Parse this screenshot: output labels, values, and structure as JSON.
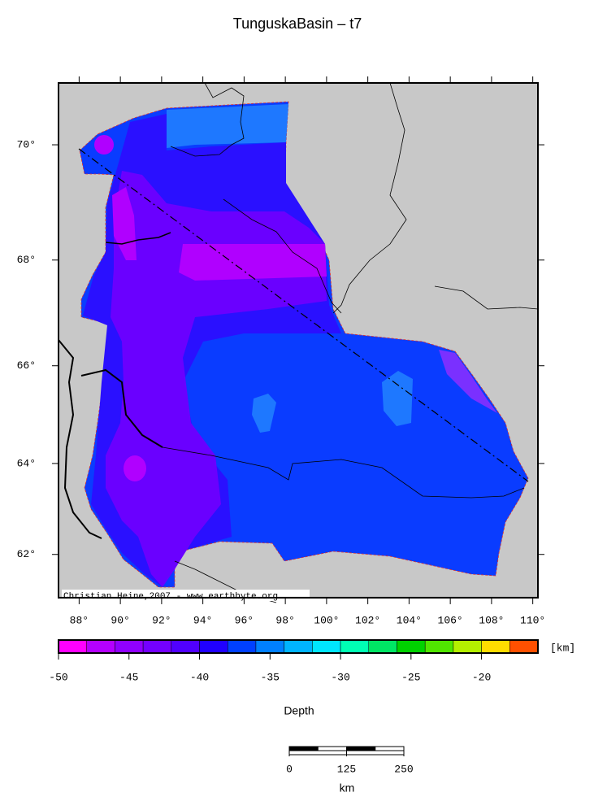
{
  "title": "TunguskaBasin – t7",
  "map": {
    "type": "map",
    "xlim": [
      87,
      110.25
    ],
    "ylim": [
      61,
      71
    ],
    "background": "#c8c8c8",
    "xticks": [
      {
        "value": 88,
        "label": "88°"
      },
      {
        "value": 90,
        "label": "90°"
      },
      {
        "value": 92,
        "label": "92°"
      },
      {
        "value": 94,
        "label": "94°"
      },
      {
        "value": 96,
        "label": "96°"
      },
      {
        "value": 98,
        "label": "98°"
      },
      {
        "value": 100,
        "label": "100°"
      },
      {
        "value": 102,
        "label": "102°"
      },
      {
        "value": 104,
        "label": "104°"
      },
      {
        "value": 106,
        "label": "106°"
      },
      {
        "value": 108,
        "label": "108°"
      },
      {
        "value": 110,
        "label": "110°"
      }
    ],
    "yticks": [
      {
        "value": 62,
        "label": "62°"
      },
      {
        "value": 64,
        "label": "64°"
      },
      {
        "value": 66,
        "label": "66°"
      },
      {
        "value": 68,
        "label": "68°"
      },
      {
        "value": 70,
        "label": "70°"
      }
    ],
    "credit": "Christian Heine,2007 - www.earthbyte.org"
  },
  "colorbar": {
    "clim": [
      -50,
      -16
    ],
    "ticks": [
      -50,
      -45,
      -40,
      -35,
      -30,
      -25,
      -20
    ],
    "unit": "[km]",
    "label": "Depth",
    "colors": [
      "#ff00ff",
      "#b400ff",
      "#9000ff",
      "#7400ff",
      "#5000ff",
      "#2000ff",
      "#0040ff",
      "#0080ff",
      "#00b4ff",
      "#00e6ff",
      "#00ffb4",
      "#00e664",
      "#00d200",
      "#50e600",
      "#b4f000",
      "#ffdc00",
      "#ff5000"
    ]
  },
  "scale_bar": {
    "ticks": [
      0,
      125,
      250
    ],
    "unit": "km"
  }
}
